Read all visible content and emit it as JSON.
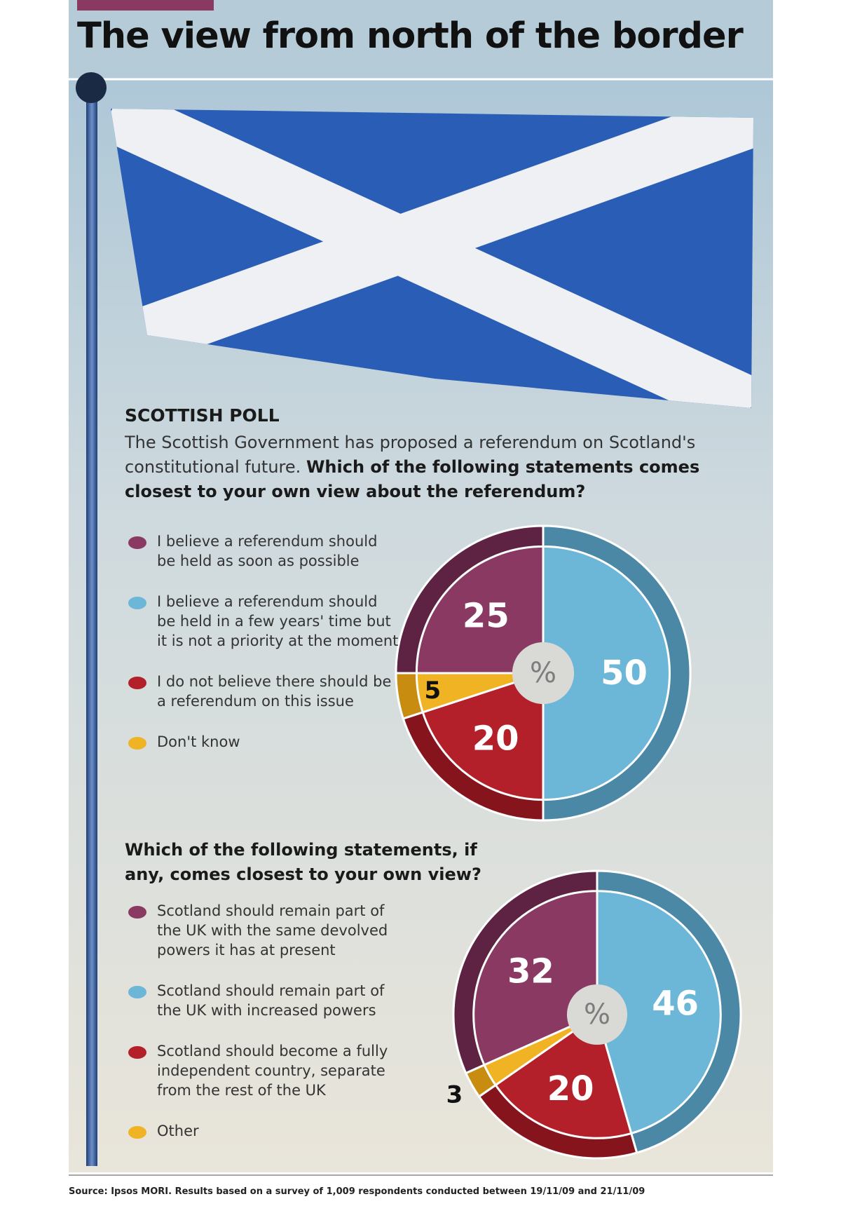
{
  "title": "The view from north of the border",
  "poll": {
    "heading": "SCOTTISH POLL",
    "intro": "The Scottish Government has proposed a referendum on Scotland's constitutional future."
  },
  "chart_data": [
    {
      "type": "pie",
      "title": "Which of the following statements comes closest to your own view about the referendum?",
      "center_label": "%",
      "categories": [
        "I believe a referendum should be held as soon as possible",
        "I believe a referendum should be held in a few years' time but it is not a priority at the moment",
        "I do not believe there should be a referendum on this issue",
        "Don't know"
      ],
      "values": [
        25,
        50,
        20,
        5
      ],
      "colors": [
        "#8a3a62",
        "#6cb7d8",
        "#b3202a",
        "#f0b323"
      ],
      "rim_colors": [
        "#5e2243",
        "#4a88a5",
        "#86141c",
        "#c88c10"
      ]
    },
    {
      "type": "pie",
      "title": "Which of the following statements, if any, comes closest to your own view?",
      "center_label": "%",
      "categories": [
        "Scotland should remain part of the UK with the same devolved powers it has at present",
        "Scotland should remain part of the UK with increased powers",
        "Scotland should become a fully independent country, separate from the rest of the UK",
        "Other"
      ],
      "values": [
        32,
        46,
        20,
        3
      ],
      "colors": [
        "#8a3a62",
        "#6cb7d8",
        "#b3202a",
        "#f0b323"
      ],
      "rim_colors": [
        "#5e2243",
        "#4a88a5",
        "#86141c",
        "#c88c10"
      ]
    }
  ],
  "source": "Source: Ipsos MORI. Results based on a survey of 1,009 respondents conducted between 19/11/09 and 21/11/09"
}
